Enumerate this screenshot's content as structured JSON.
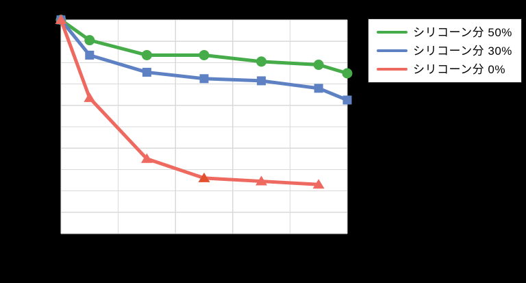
{
  "page": {
    "background_color": "#000000"
  },
  "chart_data": {
    "type": "line",
    "title": "",
    "xlabel": "",
    "ylabel": "",
    "axes": {
      "x_tick_labels_visible": false,
      "y_tick_labels_visible": false,
      "x_gridline_count": 6,
      "y_gridline_count": 11,
      "x_range_grid_units": [
        0,
        5
      ],
      "y_range_grid_units_top_to_bottom": [
        0,
        10
      ],
      "grid_on": true
    },
    "colors": {
      "plot_background": "#ffffff",
      "gridline": "#d9d9d9",
      "page_background": "#000000",
      "legend_border": "#1f1f1f",
      "legend_text": "#000000"
    },
    "series": [
      {
        "name": "シリコーン分 50%",
        "color": "#46ac4a",
        "marker": "circle",
        "points_grid": [
          [
            0,
            0
          ],
          [
            0.5,
            0.95
          ],
          [
            1.5,
            1.65
          ],
          [
            2.5,
            1.65
          ],
          [
            3.5,
            1.95
          ],
          [
            4.5,
            2.1
          ],
          [
            5,
            2.5
          ]
        ]
      },
      {
        "name": "シリコーン分 30%",
        "color": "#5e81c4",
        "marker": "square",
        "points_grid": [
          [
            0,
            0
          ],
          [
            0.5,
            1.65
          ],
          [
            1.5,
            2.45
          ],
          [
            2.5,
            2.75
          ],
          [
            3.5,
            2.85
          ],
          [
            4.5,
            3.2
          ],
          [
            5,
            3.75
          ]
        ]
      },
      {
        "name": "シリコーン分 0%",
        "color": "#ee6a61",
        "marker": "triangle",
        "points_grid": [
          [
            0,
            0
          ],
          [
            0.5,
            3.65
          ],
          [
            1.5,
            6.5
          ],
          [
            2.5,
            7.4
          ],
          [
            3.5,
            7.55
          ],
          [
            4.5,
            7.7
          ]
        ],
        "marker_color_overrides": {
          "3": "#e2502d"
        }
      }
    ],
    "legend": {
      "position": "top-right",
      "labels": [
        "シリコーン分 50%",
        "シリコーン分 30%",
        "シリコーン分 0%"
      ]
    }
  }
}
